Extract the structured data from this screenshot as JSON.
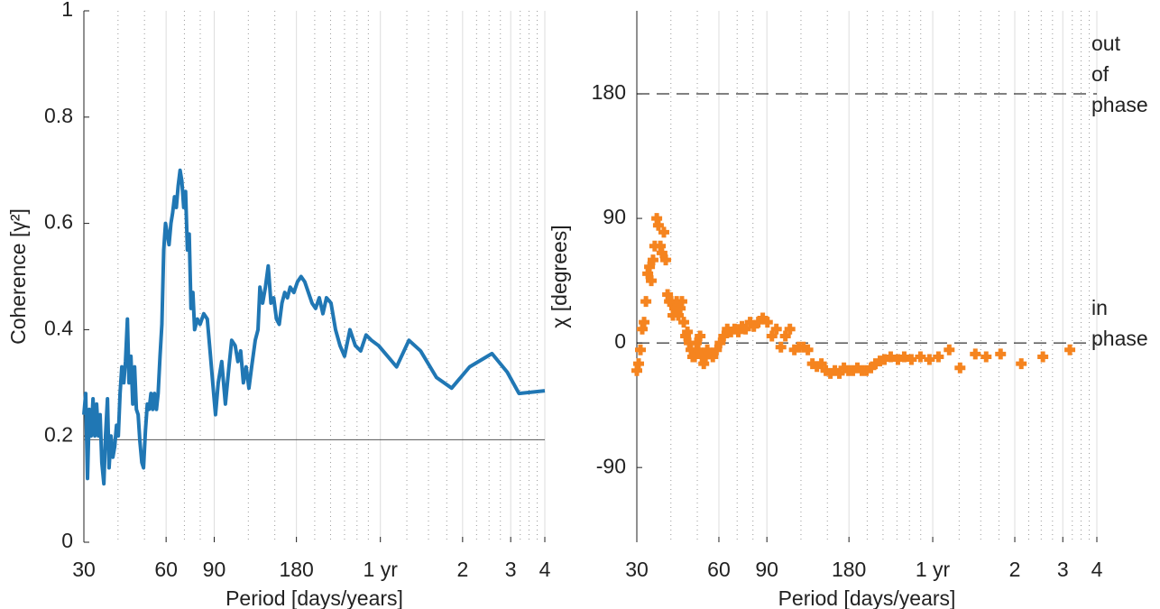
{
  "chart_data": [
    {
      "type": "line",
      "xlabel": "Period [days/years]",
      "ylabel": "Coherence [γ²]",
      "log_x": true,
      "xlim": [
        30,
        1461
      ],
      "ylim": [
        0,
        1
      ],
      "xticks": [
        30,
        60,
        90,
        180,
        {
          "value": 365.25,
          "label": "1 yr"
        },
        {
          "value": 730.5,
          "label": "2"
        },
        {
          "value": 1095.75,
          "label": "3"
        },
        {
          "value": 1461,
          "label": "4"
        }
      ],
      "minor_xticks": [
        40,
        50,
        70,
        80,
        120,
        150,
        210,
        240,
        270,
        300,
        330,
        456.6,
        547.9,
        639.2,
        821.8,
        913.1,
        1004.5,
        1187.3,
        1278.6,
        1369.9
      ],
      "yticks": [
        0,
        0.2,
        0.4,
        0.6,
        0.8,
        1
      ],
      "hlines": [
        0.193
      ],
      "hline_style": "solid",
      "hline_color": "#555555",
      "x": [
        30,
        30.46,
        30.93,
        31.4,
        31.9,
        32.4,
        32.9,
        33.4,
        33.9,
        34.4,
        34.9,
        35.5,
        36.0,
        36.6,
        37.1,
        37.7,
        38.3,
        38.9,
        39.5,
        40.1,
        40.7,
        41.3,
        42.0,
        42.6,
        43.3,
        43.9,
        44.6,
        45.3,
        46.0,
        46.7,
        47.4,
        48.1,
        48.9,
        49.6,
        50.4,
        51.2,
        52.0,
        52.8,
        53.6,
        54.4,
        55.3,
        56.1,
        57.0,
        57.9,
        58.8,
        59.7,
        60.6,
        61.5,
        62.5,
        63.4,
        64.4,
        65.4,
        66.4,
        67.5,
        68.5,
        69.6,
        70.7,
        71.8,
        72.9,
        74.0,
        75.2,
        76.3,
        78.1,
        79.9,
        82.4,
        84.9,
        86.9,
        88.9,
        91.0,
        93.1,
        95.9,
        98.9,
        101.9,
        104.3,
        107.4,
        109.9,
        112.5,
        115.1,
        117.8,
        120.6,
        123.4,
        127.2,
        130.2,
        132.3,
        135.4,
        138.6,
        141.9,
        145.2,
        148.6,
        152.1,
        155.7,
        159.3,
        163.1,
        166.9,
        170.8,
        176.1,
        181.6,
        187.2,
        193.1,
        199.1,
        205.3,
        211.6,
        218.2,
        225.0,
        231.9,
        240.9,
        250.3,
        259.9,
        270.0,
        282.6,
        295.7,
        309.4,
        323.8,
        338.8,
        359.8,
        388.2,
        418.7,
        464.7,
        512.6,
        586.1,
        666.1,
        775.0,
        935.8,
        1064.5,
        1175,
        1461
      ],
      "series": [
        {
          "color": "#2077b4",
          "values": [
            0.24,
            0.28,
            0.12,
            0.25,
            0.2,
            0.27,
            0.2,
            0.26,
            0.2,
            0.24,
            0.15,
            0.11,
            0.2,
            0.27,
            0.14,
            0.2,
            0.16,
            0.18,
            0.22,
            0.2,
            0.28,
            0.33,
            0.3,
            0.34,
            0.42,
            0.3,
            0.35,
            0.26,
            0.33,
            0.25,
            0.24,
            0.19,
            0.15,
            0.14,
            0.21,
            0.26,
            0.25,
            0.28,
            0.25,
            0.28,
            0.25,
            0.28,
            0.35,
            0.41,
            0.55,
            0.6,
            0.58,
            0.56,
            0.6,
            0.62,
            0.65,
            0.63,
            0.67,
            0.7,
            0.68,
            0.63,
            0.66,
            0.55,
            0.58,
            0.44,
            0.47,
            0.4,
            0.42,
            0.41,
            0.43,
            0.42,
            0.36,
            0.3,
            0.24,
            0.3,
            0.34,
            0.26,
            0.33,
            0.38,
            0.37,
            0.34,
            0.36,
            0.3,
            0.33,
            0.29,
            0.33,
            0.38,
            0.4,
            0.48,
            0.45,
            0.48,
            0.52,
            0.45,
            0.46,
            0.42,
            0.41,
            0.45,
            0.47,
            0.46,
            0.48,
            0.47,
            0.49,
            0.5,
            0.49,
            0.47,
            0.45,
            0.44,
            0.46,
            0.43,
            0.46,
            0.45,
            0.4,
            0.37,
            0.35,
            0.4,
            0.37,
            0.36,
            0.39,
            0.38,
            0.37,
            0.35,
            0.33,
            0.38,
            0.36,
            0.31,
            0.29,
            0.33,
            0.355,
            0.32,
            0.28,
            0.285
          ]
        }
      ]
    },
    {
      "type": "scatter",
      "xlabel": "Period [days/years]",
      "ylabel": "χ [degrees]",
      "log_x": true,
      "xlim": [
        30,
        1461
      ],
      "ylim": [
        -144,
        240
      ],
      "xticks": [
        30,
        60,
        90,
        180,
        {
          "value": 365.25,
          "label": "1 yr"
        },
        {
          "value": 730.5,
          "label": "2"
        },
        {
          "value": 1095.75,
          "label": "3"
        },
        {
          "value": 1461,
          "label": "4"
        }
      ],
      "minor_xticks": [
        40,
        50,
        70,
        80,
        120,
        150,
        210,
        240,
        270,
        300,
        330,
        456.6,
        547.9,
        639.2,
        821.8,
        913.1,
        1004.5,
        1187.3,
        1278.6,
        1369.9
      ],
      "yticks": [
        -90,
        0,
        90,
        180
      ],
      "hlines": [
        180,
        0
      ],
      "hline_style": "dashed",
      "hline_color": "#000000",
      "annotations": [
        {
          "lines": [
            "out",
            "of",
            "phase"
          ],
          "y": 180
        },
        {
          "lines": [
            "in",
            "phase"
          ],
          "y": 0
        }
      ],
      "x": [
        30,
        30.46,
        30.93,
        31.4,
        31.9,
        32.4,
        32.9,
        33.4,
        33.9,
        34.4,
        34.9,
        35.5,
        36.0,
        36.6,
        37.1,
        37.7,
        38.3,
        38.9,
        39.5,
        40.1,
        40.7,
        41.3,
        42.0,
        42.6,
        43.3,
        43.9,
        44.6,
        45.3,
        46.0,
        46.7,
        47.4,
        48.1,
        48.9,
        49.6,
        50.4,
        51.2,
        52.0,
        52.8,
        53.6,
        54.4,
        55.3,
        57.0,
        58.8,
        60.6,
        62.5,
        64.4,
        66.4,
        68.5,
        70.7,
        72.9,
        75.2,
        78.1,
        80.6,
        83.7,
        86.9,
        90.4,
        93.9,
        97.5,
        101.3,
        105.2,
        109.3,
        113.5,
        117.9,
        122.5,
        127.2,
        132.2,
        137.3,
        142.6,
        148.1,
        153.9,
        159.8,
        166,
        172.5,
        179.2,
        186.1,
        193.3,
        200.8,
        208.6,
        216.7,
        225.1,
        233.8,
        242.9,
        256.1,
        272.2,
        287.1,
        305.1,
        329.2,
        355.2,
        383.3,
        419.8,
        460,
        523.4,
        573.5,
        647.7,
        771.6,
        926,
        1163
      ],
      "series": [
        {
          "color": "#f5841f",
          "values": [
            -20,
            -15,
            -5,
            10,
            15,
            30,
            50,
            55,
            45,
            60,
            70,
            90,
            85,
            70,
            65,
            80,
            60,
            35,
            30,
            30,
            20,
            25,
            30,
            20,
            25,
            30,
            15,
            5,
            8,
            0,
            -5,
            -10,
            -10,
            0,
            -5,
            5,
            -10,
            -15,
            -10,
            -5,
            -8,
            -10,
            -5,
            0,
            5,
            10,
            8,
            10,
            8,
            12,
            10,
            15,
            12,
            15,
            18,
            15,
            5,
            10,
            -3,
            5,
            10,
            -5,
            -3,
            -3,
            -5,
            -15,
            -17,
            -15,
            -20,
            -22,
            -20,
            -22,
            -18,
            -20,
            -20,
            -18,
            -20,
            -20,
            -18,
            -15,
            -13,
            -12,
            -10,
            -12,
            -10,
            -12,
            -10,
            -12,
            -10,
            -5,
            -18,
            -8,
            -10,
            -8,
            -15,
            -10,
            -5
          ]
        }
      ]
    }
  ]
}
